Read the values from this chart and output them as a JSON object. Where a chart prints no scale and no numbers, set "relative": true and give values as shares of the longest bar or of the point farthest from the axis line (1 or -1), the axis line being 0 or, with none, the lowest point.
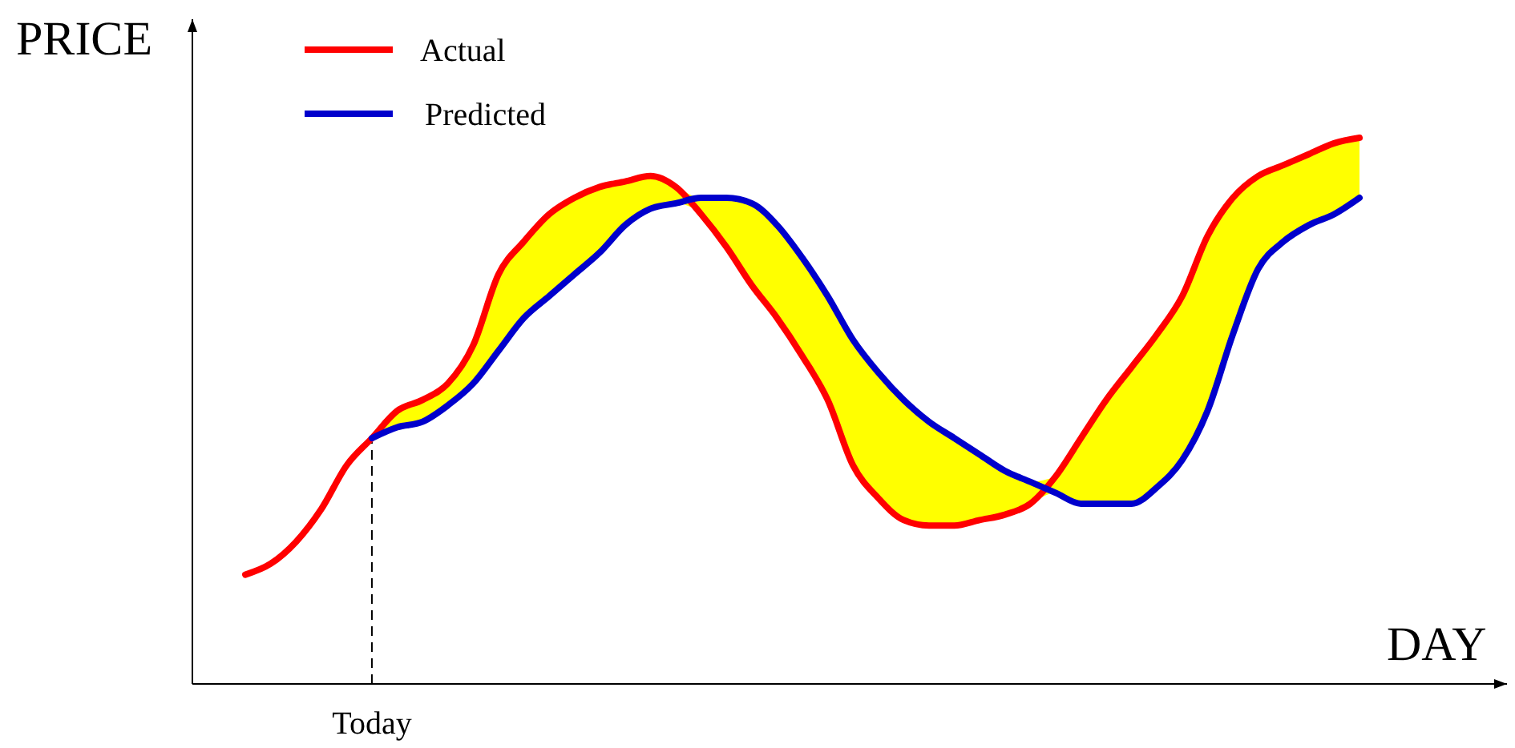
{
  "chart_data": {
    "type": "line",
    "relative": true,
    "xlabel": "DAY",
    "ylabel": "PRICE",
    "legend": "top left",
    "marker": "none",
    "line_style": "solid",
    "categories": [
      null,
      null,
      null,
      null,
      null,
      null,
      null,
      null,
      null,
      null,
      null,
      null,
      null,
      null,
      null,
      null,
      null,
      null,
      null,
      null,
      null,
      null,
      null,
      null,
      null,
      null,
      null,
      null,
      null,
      null,
      null,
      null,
      null,
      null,
      null,
      null,
      null,
      null,
      null,
      null,
      null,
      null,
      null,
      null,
      null
    ],
    "series": [
      {
        "name": "Actual",
        "color": "#ff0000",
        "values": [
          0.2,
          0.22,
          0.26,
          0.32,
          0.4,
          0.45,
          0.5,
          0.52,
          0.55,
          0.62,
          0.75,
          0.81,
          0.86,
          0.89,
          0.91,
          0.92,
          0.93,
          0.91,
          0.86,
          0.8,
          0.73,
          0.67,
          0.6,
          0.52,
          0.4,
          0.34,
          0.3,
          0.29,
          0.29,
          0.3,
          0.31,
          0.33,
          0.38,
          0.45,
          0.52,
          0.58,
          0.64,
          0.71,
          0.82,
          0.89,
          0.93,
          0.95,
          0.97,
          0.99,
          1
        ]
      },
      {
        "name": "Predicted",
        "color": "#0000cc",
        "values": [
          null,
          null,
          null,
          null,
          null,
          0.45,
          0.47,
          0.48,
          0.51,
          0.55,
          0.61,
          0.67,
          0.71,
          0.75,
          0.79,
          0.84,
          0.87,
          0.88,
          0.89,
          0.89,
          0.88,
          0.84,
          0.78,
          0.71,
          0.63,
          0.57,
          0.52,
          0.48,
          0.45,
          0.42,
          0.39,
          0.37,
          0.35,
          0.33,
          0.33,
          0.33,
          0.36,
          0.41,
          0.5,
          0.64,
          0.76,
          0.81,
          0.84,
          0.86,
          0.89
        ],
        "lower": [
          null,
          null,
          null,
          null,
          null,
          0.45,
          0.47,
          0.48,
          0.51,
          0.55,
          0.61,
          0.67,
          0.71,
          0.75,
          0.79,
          0.84,
          0.87,
          0.88,
          0.86,
          0.8,
          0.73,
          0.67,
          0.6,
          0.52,
          0.4,
          0.34,
          0.3,
          0.29,
          0.29,
          0.3,
          0.31,
          0.33,
          0.35,
          0.33,
          0.33,
          0.33,
          0.36,
          0.41,
          0.5,
          0.64,
          0.76,
          0.81,
          0.84,
          0.86,
          0.89
        ],
        "upper": [
          null,
          null,
          null,
          null,
          null,
          0.45,
          0.5,
          0.52,
          0.55,
          0.62,
          0.75,
          0.81,
          0.86,
          0.89,
          0.91,
          0.92,
          0.93,
          0.91,
          0.89,
          0.89,
          0.88,
          0.84,
          0.78,
          0.71,
          0.63,
          0.57,
          0.52,
          0.48,
          0.45,
          0.42,
          0.39,
          0.37,
          0.38,
          0.45,
          0.52,
          0.58,
          0.64,
          0.71,
          0.82,
          0.89,
          0.93,
          0.95,
          0.97,
          0.99,
          1
        ]
      }
    ],
    "annotations": [
      "Today"
    ]
  }
}
